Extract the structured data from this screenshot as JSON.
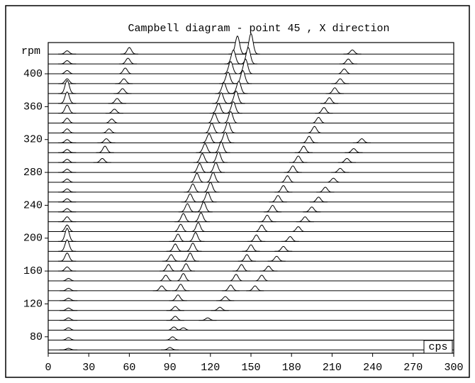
{
  "chart_data": {
    "type": "waterfall",
    "title": "Campbell diagram - point 45 , X direction",
    "x_label": "cps",
    "y_label": "rpm",
    "xlim": [
      0,
      300
    ],
    "xticks": [
      0,
      30,
      60,
      90,
      120,
      150,
      180,
      210,
      240,
      270,
      300
    ],
    "ylim": [
      60,
      438
    ],
    "yticks": [
      80,
      120,
      160,
      200,
      240,
      280,
      320,
      360,
      400
    ],
    "color": "#000000",
    "traces": [
      {
        "rpm": 64,
        "peaks": [
          [
            15,
            2
          ],
          [
            90,
            3
          ]
        ]
      },
      {
        "rpm": 76,
        "peaks": [
          [
            15,
            3
          ],
          [
            92,
            4
          ]
        ]
      },
      {
        "rpm": 88,
        "peaks": [
          [
            15,
            3
          ],
          [
            93,
            4
          ],
          [
            100,
            3
          ]
        ]
      },
      {
        "rpm": 100,
        "peaks": [
          [
            15,
            3
          ],
          [
            94,
            5
          ],
          [
            118,
            3
          ]
        ]
      },
      {
        "rpm": 112,
        "peaks": [
          [
            15,
            3
          ],
          [
            94,
            5
          ],
          [
            127,
            4
          ]
        ]
      },
      {
        "rpm": 124,
        "peaks": [
          [
            15,
            3
          ],
          [
            96,
            7
          ],
          [
            131,
            5
          ]
        ]
      },
      {
        "rpm": 136,
        "peaks": [
          [
            15,
            3
          ],
          [
            84,
            6
          ],
          [
            98,
            8
          ],
          [
            135,
            7
          ],
          [
            153,
            6
          ]
        ]
      },
      {
        "rpm": 148,
        "peaks": [
          [
            15,
            3
          ],
          [
            87,
            7
          ],
          [
            100,
            9
          ],
          [
            139,
            8
          ],
          [
            158,
            7
          ]
        ]
      },
      {
        "rpm": 160,
        "peaks": [
          [
            14,
            5
          ],
          [
            89,
            8
          ],
          [
            102,
            9
          ],
          [
            143,
            8
          ],
          [
            163,
            6
          ]
        ]
      },
      {
        "rpm": 172,
        "peaks": [
          [
            14,
            10
          ],
          [
            91,
            8
          ],
          [
            105,
            10
          ],
          [
            147,
            8
          ],
          [
            169,
            6
          ]
        ]
      },
      {
        "rpm": 184,
        "peaks": [
          [
            14,
            14
          ],
          [
            94,
            9
          ],
          [
            107,
            10
          ],
          [
            150,
            8
          ],
          [
            174,
            6
          ]
        ]
      },
      {
        "rpm": 196,
        "peaks": [
          [
            14,
            16
          ],
          [
            96,
            9
          ],
          [
            109,
            11
          ],
          [
            154,
            8
          ],
          [
            179,
            6
          ]
        ]
      },
      {
        "rpm": 208,
        "peaks": [
          [
            14,
            8
          ],
          [
            98,
            9
          ],
          [
            111,
            11
          ],
          [
            158,
            8
          ],
          [
            185,
            6
          ]
        ]
      },
      {
        "rpm": 220,
        "peaks": [
          [
            14,
            6
          ],
          [
            100,
            10
          ],
          [
            113,
            11
          ],
          [
            162,
            8
          ],
          [
            190,
            6
          ]
        ]
      },
      {
        "rpm": 232,
        "peaks": [
          [
            14,
            4
          ],
          [
            103,
            10
          ],
          [
            115,
            12
          ],
          [
            166,
            8
          ],
          [
            195,
            6
          ]
        ]
      },
      {
        "rpm": 244,
        "peaks": [
          [
            14,
            4
          ],
          [
            105,
            10
          ],
          [
            118,
            12
          ],
          [
            170,
            8
          ],
          [
            200,
            6
          ]
        ]
      },
      {
        "rpm": 256,
        "peaks": [
          [
            14,
            4
          ],
          [
            107,
            10
          ],
          [
            120,
            12
          ],
          [
            174,
            8
          ],
          [
            205,
            6
          ]
        ]
      },
      {
        "rpm": 268,
        "peaks": [
          [
            14,
            4
          ],
          [
            110,
            11
          ],
          [
            122,
            12
          ],
          [
            177,
            8
          ],
          [
            211,
            5
          ]
        ]
      },
      {
        "rpm": 280,
        "peaks": [
          [
            14,
            4
          ],
          [
            112,
            11
          ],
          [
            124,
            12
          ],
          [
            181,
            8
          ],
          [
            216,
            5
          ]
        ]
      },
      {
        "rpm": 292,
        "peaks": [
          [
            14,
            4
          ],
          [
            40,
            5
          ],
          [
            114,
            11
          ],
          [
            126,
            13
          ],
          [
            185,
            8
          ],
          [
            221,
            5
          ]
        ]
      },
      {
        "rpm": 304,
        "peaks": [
          [
            14,
            4
          ],
          [
            42,
            8
          ],
          [
            116,
            11
          ],
          [
            128,
            13
          ],
          [
            189,
            8
          ],
          [
            226,
            5
          ]
        ]
      },
      {
        "rpm": 316,
        "peaks": [
          [
            14,
            4
          ],
          [
            43,
            5
          ],
          [
            119,
            11
          ],
          [
            131,
            13
          ],
          [
            193,
            8
          ],
          [
            232,
            5
          ]
        ]
      },
      {
        "rpm": 328,
        "peaks": [
          [
            14,
            5
          ],
          [
            45,
            5
          ],
          [
            121,
            12
          ],
          [
            133,
            13
          ],
          [
            197,
            8
          ]
        ]
      },
      {
        "rpm": 340,
        "peaks": [
          [
            14,
            6
          ],
          [
            47,
            5
          ],
          [
            123,
            12
          ],
          [
            135,
            14
          ],
          [
            200,
            7
          ]
        ]
      },
      {
        "rpm": 352,
        "peaks": [
          [
            14,
            10
          ],
          [
            49,
            5
          ],
          [
            126,
            12
          ],
          [
            137,
            14
          ],
          [
            204,
            7
          ]
        ]
      },
      {
        "rpm": 364,
        "peaks": [
          [
            14,
            14
          ],
          [
            51,
            6
          ],
          [
            128,
            13
          ],
          [
            139,
            15
          ],
          [
            208,
            7
          ]
        ]
      },
      {
        "rpm": 376,
        "peaks": [
          [
            14,
            16
          ],
          [
            55,
            6
          ],
          [
            130,
            13
          ],
          [
            141,
            15
          ],
          [
            212,
            7
          ]
        ]
      },
      {
        "rpm": 388,
        "peaks": [
          [
            14,
            6
          ],
          [
            56,
            6
          ],
          [
            133,
            14
          ],
          [
            144,
            16
          ],
          [
            216,
            6
          ]
        ]
      },
      {
        "rpm": 400,
        "peaks": [
          [
            14,
            4
          ],
          [
            57,
            7
          ],
          [
            135,
            15
          ],
          [
            146,
            18
          ],
          [
            219,
            6
          ]
        ]
      },
      {
        "rpm": 412,
        "peaks": [
          [
            14,
            4
          ],
          [
            59,
            7
          ],
          [
            137,
            17
          ],
          [
            148,
            20
          ],
          [
            222,
            6
          ]
        ]
      },
      {
        "rpm": 424,
        "peaks": [
          [
            14,
            4
          ],
          [
            60,
            8
          ],
          [
            140,
            22
          ],
          [
            150,
            25
          ],
          [
            225,
            5
          ]
        ]
      }
    ]
  }
}
